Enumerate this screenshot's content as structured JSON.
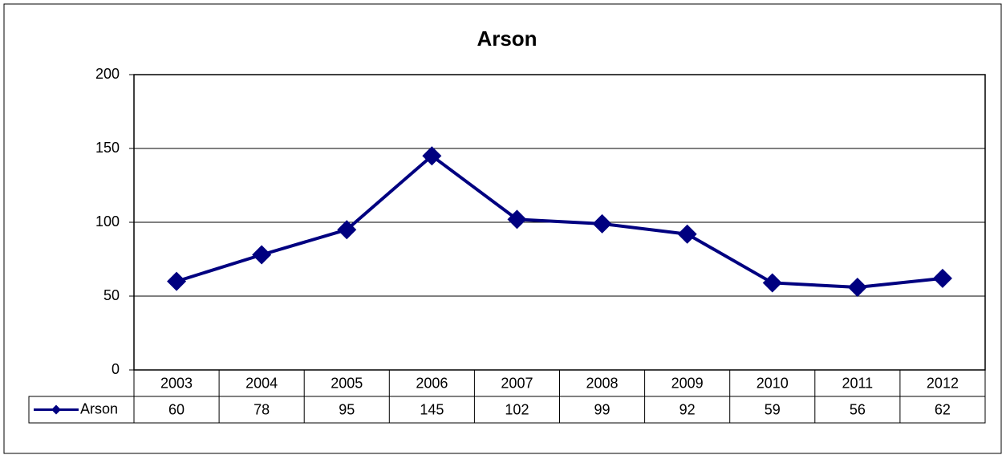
{
  "chart_data": {
    "type": "line",
    "title": "Arson",
    "categories": [
      "2003",
      "2004",
      "2005",
      "2006",
      "2007",
      "2008",
      "2009",
      "2010",
      "2011",
      "2012"
    ],
    "series": [
      {
        "name": "Arson",
        "color": "#000080",
        "values": [
          60,
          78,
          95,
          145,
          102,
          99,
          92,
          59,
          56,
          62
        ]
      }
    ],
    "ylim": [
      0,
      200
    ],
    "yticks": [
      0,
      50,
      100,
      150,
      200
    ],
    "grid": true,
    "legend": "bottom-left"
  }
}
